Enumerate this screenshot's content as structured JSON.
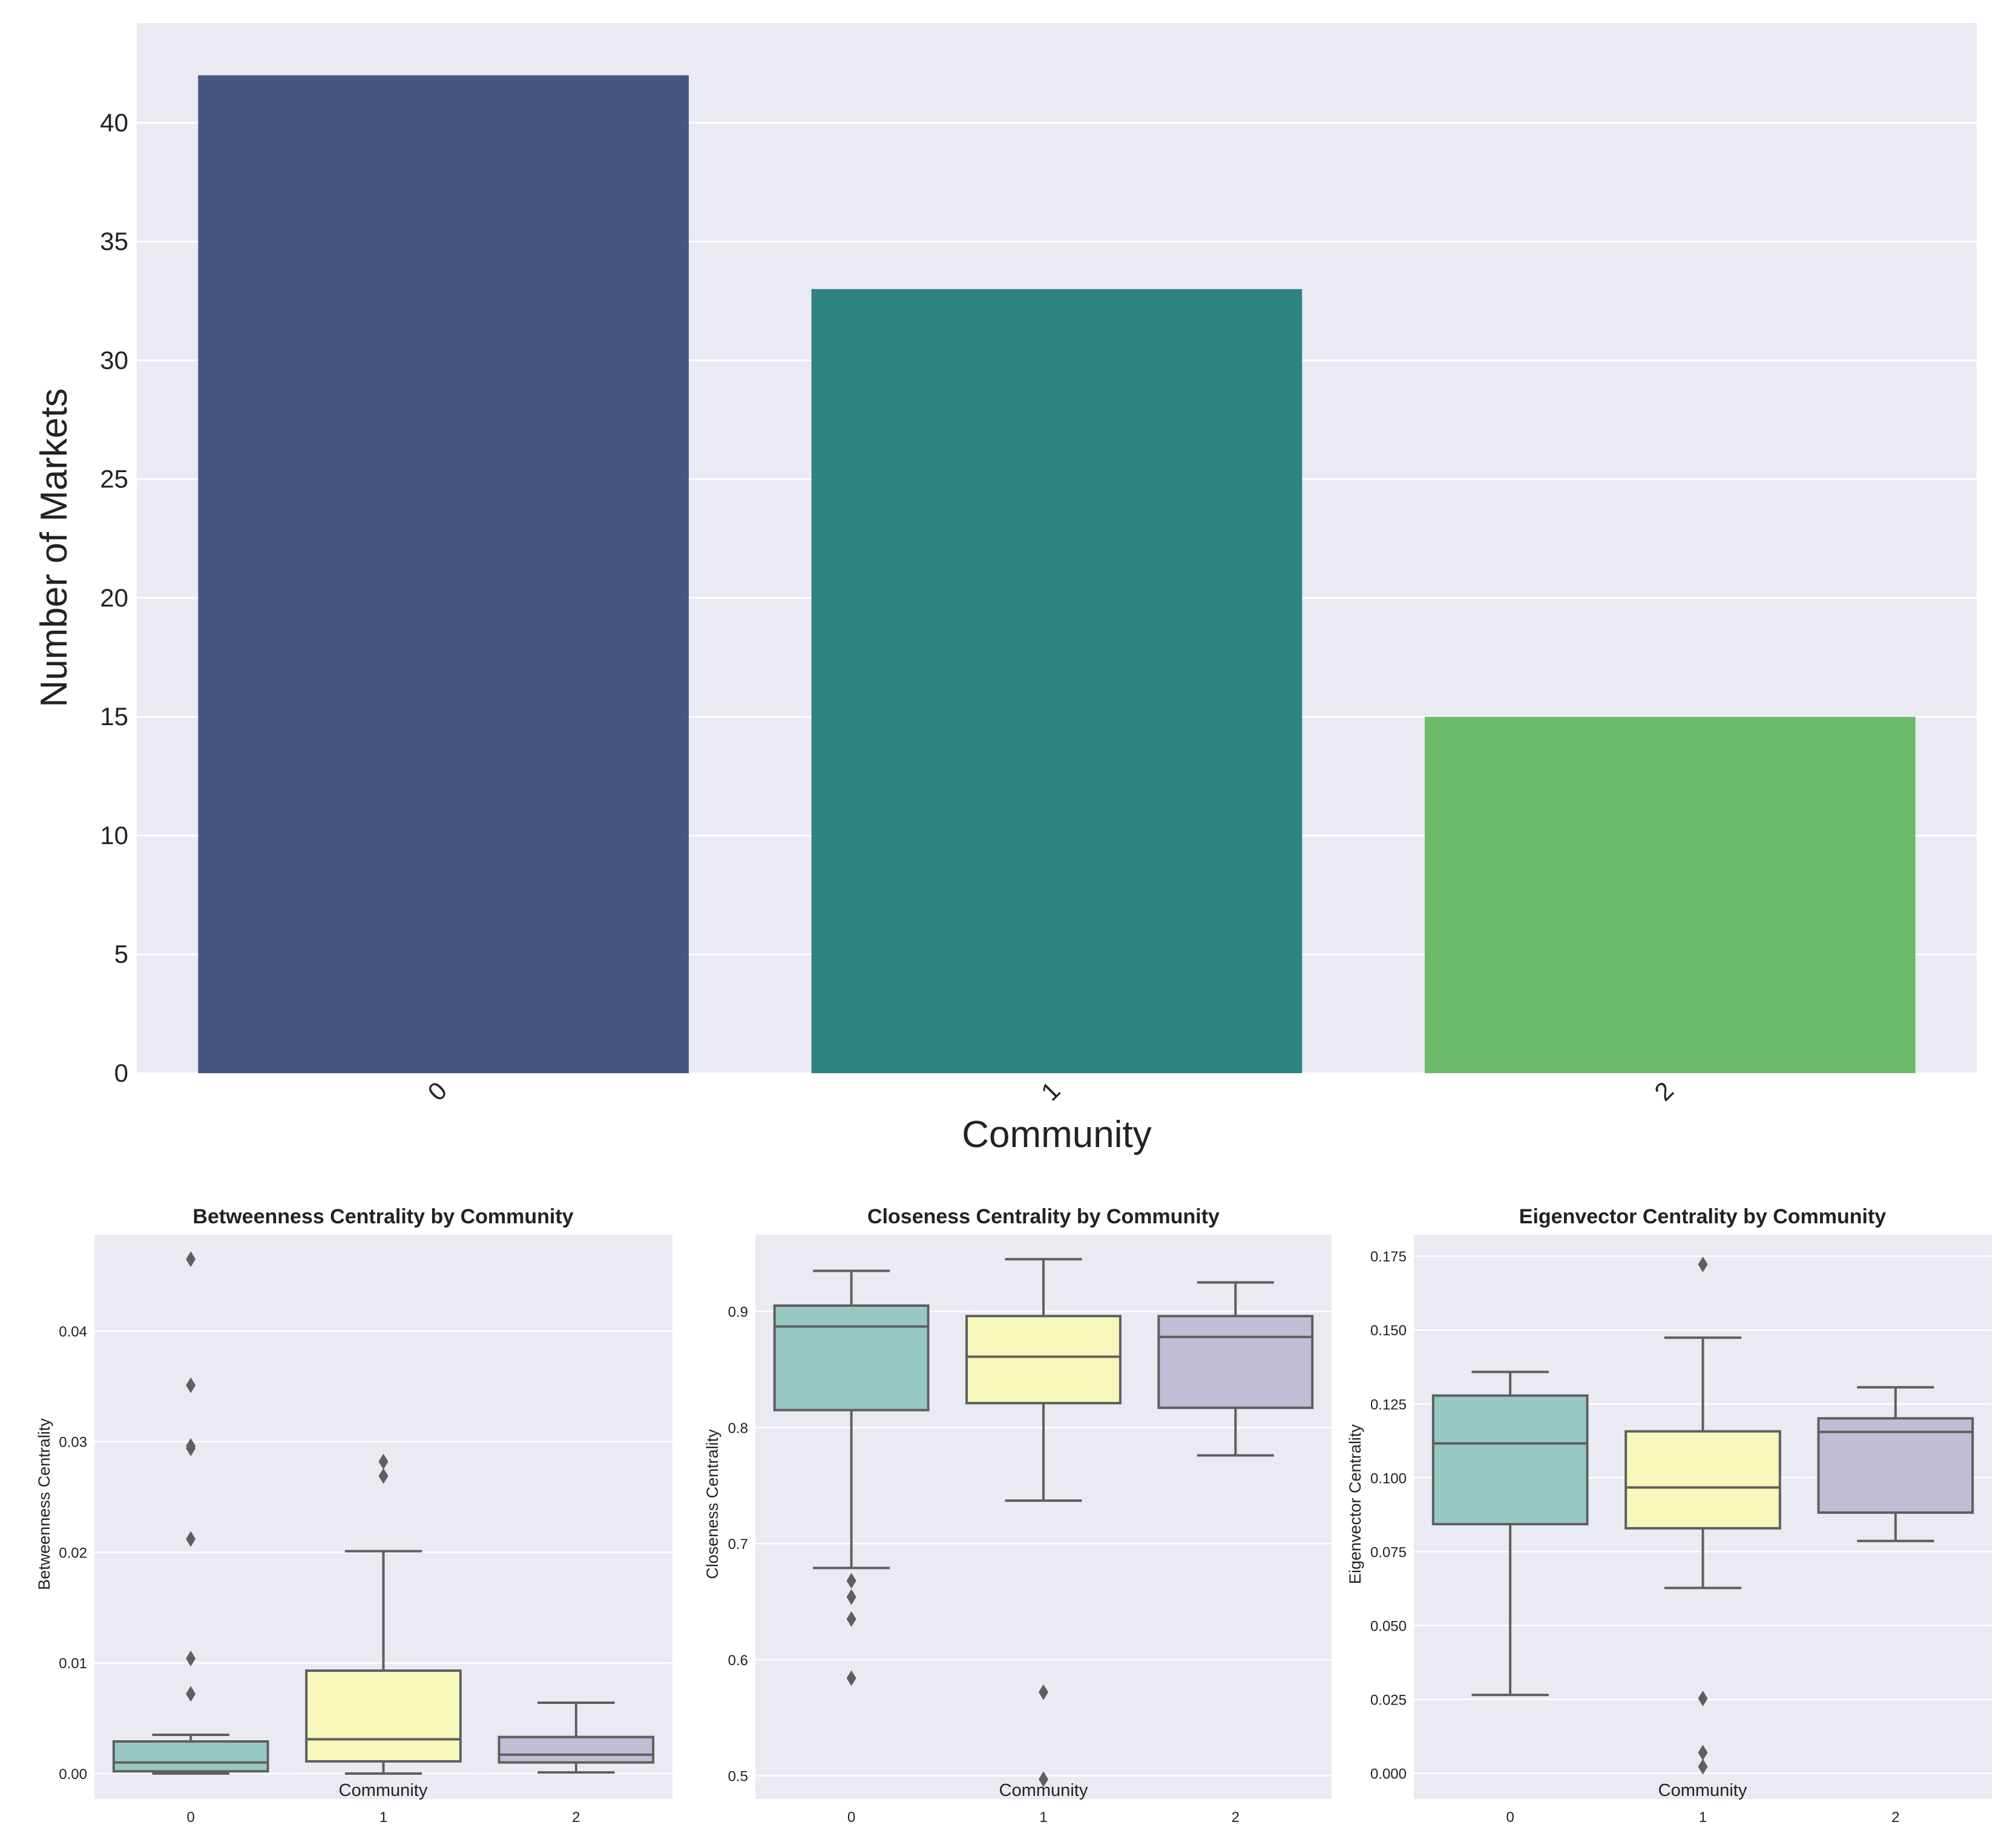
{
  "chart_data": [
    {
      "type": "bar",
      "title": "",
      "xlabel": "Community",
      "ylabel": "Number of Markets",
      "categories": [
        "0",
        "1",
        "2"
      ],
      "values": [
        42,
        33,
        15
      ],
      "colors": [
        "#46577f",
        "#2e8482",
        "#6bbb6b"
      ],
      "ylim": [
        0,
        44.2
      ],
      "yticks": [
        0,
        5,
        10,
        15,
        20,
        25,
        30,
        35,
        40
      ],
      "grid": true
    },
    {
      "type": "box",
      "title": "Betweenness Centrality by Community",
      "xlabel": "Community",
      "ylabel": "Betweenness Centrality",
      "categories": [
        "0",
        "1",
        "2"
      ],
      "colors": [
        "#97c9c2",
        "#f7f6bb",
        "#c0bdd6"
      ],
      "ylim": [
        -0.0023,
        0.0487
      ],
      "yticks": [
        0.0,
        0.01,
        0.02,
        0.03,
        0.04
      ],
      "ytick_labels": [
        "0.00",
        "0.01",
        "0.02",
        "0.03",
        "0.04"
      ],
      "boxes": [
        {
          "whislo": 0.0,
          "q1": 0.0002,
          "med": 0.001,
          "q3": 0.0029,
          "whishi": 0.0035,
          "fliers": [
            0.0072,
            0.0104,
            0.0212,
            0.0294,
            0.0296,
            0.0351,
            0.0465
          ]
        },
        {
          "whislo": 0.0,
          "q1": 0.0011,
          "med": 0.0031,
          "q3": 0.0093,
          "whishi": 0.0201,
          "fliers": [
            0.0269,
            0.0282
          ]
        },
        {
          "whislo": 0.0001,
          "q1": 0.001,
          "med": 0.0017,
          "q3": 0.0033,
          "whishi": 0.0064,
          "fliers": []
        }
      ]
    },
    {
      "type": "box",
      "title": "Closeness Centrality by Community",
      "xlabel": "Community",
      "ylabel": "Closeness Centrality",
      "categories": [
        "0",
        "1",
        "2"
      ],
      "colors": [
        "#97c9c2",
        "#f7f6bb",
        "#c0bdd6"
      ],
      "ylim": [
        0.48,
        0.966
      ],
      "yticks": [
        0.5,
        0.6,
        0.7,
        0.8,
        0.9
      ],
      "ytick_labels": [
        "0.5",
        "0.6",
        "0.7",
        "0.8",
        "0.9"
      ],
      "boxes": [
        {
          "whislo": 0.679,
          "q1": 0.815,
          "med": 0.887,
          "q3": 0.905,
          "whishi": 0.935,
          "fliers": [
            0.584,
            0.635,
            0.654,
            0.668
          ]
        },
        {
          "whislo": 0.737,
          "q1": 0.821,
          "med": 0.861,
          "q3": 0.896,
          "whishi": 0.945,
          "fliers": [
            0.497,
            0.572
          ]
        },
        {
          "whislo": 0.776,
          "q1": 0.817,
          "med": 0.878,
          "q3": 0.896,
          "whishi": 0.925,
          "fliers": []
        }
      ]
    },
    {
      "type": "box",
      "title": "Eigenvector Centrality by Community",
      "xlabel": "Community",
      "ylabel": "Eigenvector Centrality",
      "categories": [
        "0",
        "1",
        "2"
      ],
      "colors": [
        "#97c9c2",
        "#f7f6bb",
        "#c0bdd6"
      ],
      "ylim": [
        -0.0087,
        0.1822
      ],
      "yticks": [
        0.0,
        0.025,
        0.05,
        0.075,
        0.1,
        0.125,
        0.15,
        0.175
      ],
      "ytick_labels": [
        "0.000",
        "0.025",
        "0.050",
        "0.075",
        "0.100",
        "0.125",
        "0.150",
        "0.175"
      ],
      "boxes": [
        {
          "whislo": 0.0265,
          "q1": 0.0843,
          "med": 0.1116,
          "q3": 0.1278,
          "whishi": 0.1358,
          "fliers": []
        },
        {
          "whislo": 0.0627,
          "q1": 0.0829,
          "med": 0.0967,
          "q3": 0.1157,
          "whishi": 0.1474,
          "fliers": [
            0.0022,
            0.007,
            0.0253,
            0.1722
          ]
        },
        {
          "whislo": 0.0786,
          "q1": 0.0882,
          "med": 0.1155,
          "q3": 0.1201,
          "whishi": 0.1306,
          "fliers": []
        }
      ]
    }
  ]
}
